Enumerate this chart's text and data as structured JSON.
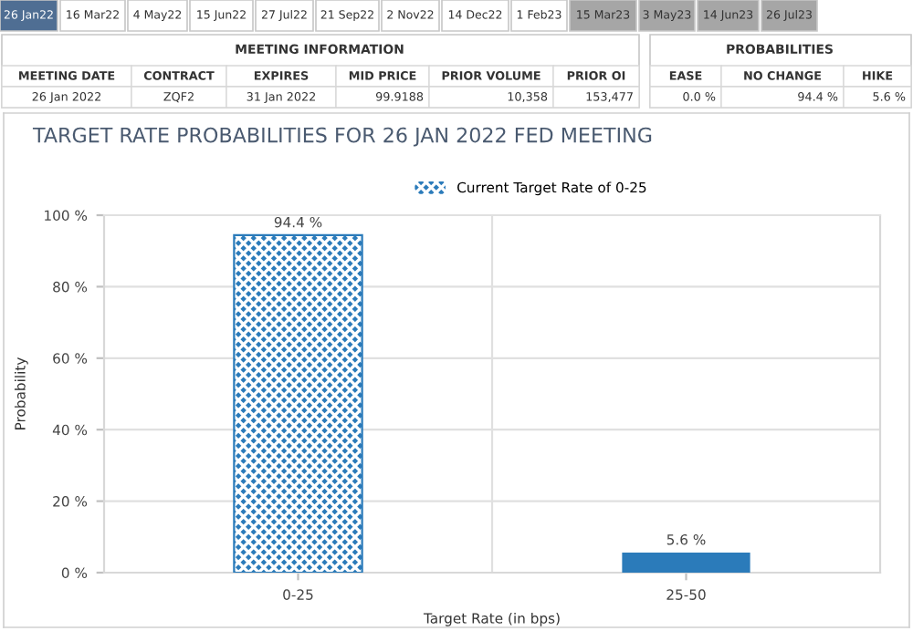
{
  "chart_data": [
    {
      "type": "other",
      "annotations": [
        "26 Jan22",
        "16 Mar22",
        "4 May22",
        "15 Jun22",
        "27 Jul22",
        "21 Sep22",
        "2 Nov22",
        "14 Dec22",
        "1 Feb23",
        "15 Mar23",
        "3 May23",
        "14 Jun23",
        "26 Jul23",
        "MEETING INFORMATION",
        "PROBABILITIES",
        "MEETING DATE",
        "CONTRACT",
        "EXPIRES",
        "MID PRICE",
        "PRIOR VOLUME",
        "PRIOR OI",
        "EASE",
        "NO CHANGE",
        "HIKE",
        "26 Jan 2022",
        "ZQF2",
        "31 Jan 2022",
        "99.9188",
        "10,358",
        "153,477",
        "0.0 %",
        "94.4 %",
        "5.6 %"
      ]
    },
    {
      "type": "bar",
      "title": "TARGET RATE PROBABILITIES FOR 26 JAN 2022 FED MEETING",
      "xlabel": "Target Rate (in bps)",
      "ylabel": "Probability",
      "categories": [
        "0-25",
        "25-50"
      ],
      "series": [
        {
          "name": "Current Target Rate of 0-25",
          "color": "#2b7bba",
          "values": [
            94.4,
            null
          ],
          "value_labels": [
            "94.4 %",
            null
          ]
        },
        {
          "color": "#2b7bba",
          "values": [
            null,
            5.6
          ],
          "value_labels": [
            null,
            "5.6 %"
          ]
        }
      ],
      "ylim": [
        0,
        100
      ],
      "yticks": [
        {
          "value": 0,
          "label": "0 %"
        },
        {
          "value": 20,
          "label": "20 %"
        },
        {
          "value": 40,
          "label": "40 %"
        },
        {
          "value": 60,
          "label": "60 %"
        },
        {
          "value": 80,
          "label": "80 %"
        },
        {
          "value": 100,
          "label": "100 %"
        }
      ],
      "grid": true,
      "legend": "top"
    }
  ]
}
